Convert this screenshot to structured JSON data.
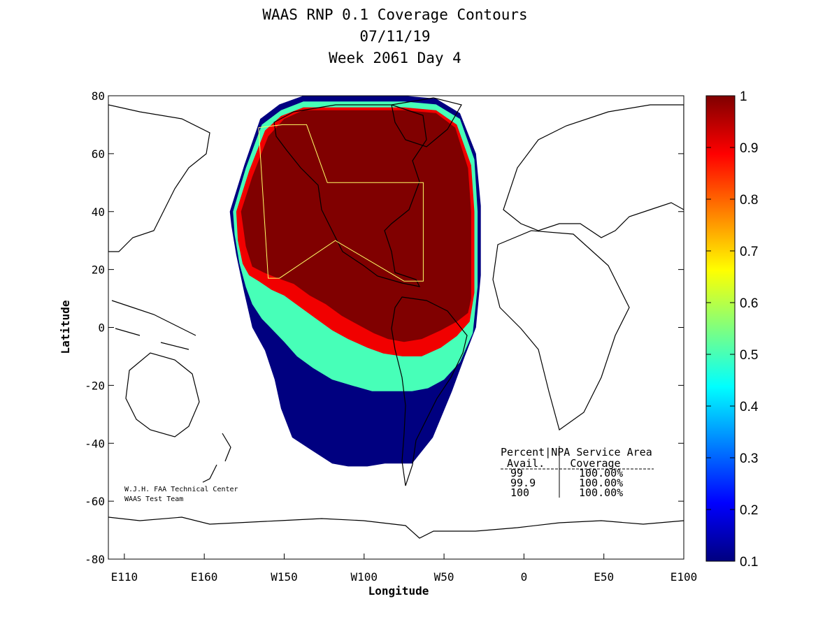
{
  "title_lines": [
    "WAAS RNP 0.1 Coverage Contours",
    "07/11/19",
    "Week 2061 Day 4"
  ],
  "chart_data": {
    "type": "heatmap",
    "title": "WAAS RNP 0.1 Coverage Contours",
    "xlabel": "Longitude",
    "ylabel": "Latitude",
    "xlim": [
      100,
      460
    ],
    "ylim": [
      -80,
      80
    ],
    "x_ticks": [
      {
        "value": 110,
        "label": "E110"
      },
      {
        "value": 160,
        "label": "E160"
      },
      {
        "value": 210,
        "label": "W150"
      },
      {
        "value": 260,
        "label": "W100"
      },
      {
        "value": 310,
        "label": "W50"
      },
      {
        "value": 360,
        "label": "0"
      },
      {
        "value": 410,
        "label": "E50"
      },
      {
        "value": 460,
        "label": "E100"
      }
    ],
    "y_ticks": [
      {
        "value": 80,
        "label": "80"
      },
      {
        "value": 60,
        "label": "60"
      },
      {
        "value": 40,
        "label": "40"
      },
      {
        "value": 20,
        "label": "20"
      },
      {
        "value": 0,
        "label": "0"
      },
      {
        "value": -20,
        "label": "-20"
      },
      {
        "value": -40,
        "label": "-40"
      },
      {
        "value": -60,
        "label": "-60"
      },
      {
        "value": -80,
        "label": "-80"
      }
    ],
    "colorbar": {
      "min": 0.1,
      "max": 1,
      "ticks": [
        {
          "value": 1,
          "label": "1"
        },
        {
          "value": 0.9,
          "label": "0.9"
        },
        {
          "value": 0.8,
          "label": "0.8"
        },
        {
          "value": 0.7,
          "label": "0.7"
        },
        {
          "value": 0.6,
          "label": "0.6"
        },
        {
          "value": 0.5,
          "label": "0.5"
        },
        {
          "value": 0.4,
          "label": "0.4"
        },
        {
          "value": 0.3,
          "label": "0.3"
        },
        {
          "value": 0.2,
          "label": "0.2"
        },
        {
          "value": 0.1,
          "label": "0.1"
        }
      ],
      "colormap": "jet"
    },
    "coverage_contours": [
      {
        "level": 0.1,
        "lons": [
          176,
          185,
          195,
          207,
          222,
          240,
          262,
          285,
          305,
          320,
          330,
          333,
          333,
          330,
          323,
          315,
          303,
          290,
          273,
          262,
          250,
          240,
          226,
          215,
          208,
          204,
          198,
          190,
          185,
          180,
          177,
          176
        ],
        "lats": [
          40,
          56,
          72,
          77,
          80,
          80,
          80,
          80,
          79,
          74,
          60,
          42,
          18,
          0,
          -10,
          -22,
          -38,
          -47,
          -47,
          -48,
          -48,
          -47,
          -42,
          -38,
          -28,
          -18,
          -8,
          0,
          12,
          25,
          35,
          40
        ]
      },
      {
        "level": 0.5,
        "lons": [
          178,
          186,
          196,
          208,
          222,
          240,
          262,
          285,
          305,
          320,
          329,
          331,
          331,
          328,
          320,
          310,
          300,
          290,
          278,
          265,
          252,
          240,
          228,
          218,
          210,
          203,
          196,
          190,
          186,
          182,
          179,
          178
        ],
        "lats": [
          40,
          55,
          70,
          75,
          78,
          78,
          78,
          78,
          77,
          72,
          58,
          40,
          14,
          -2,
          -12,
          -18,
          -21,
          -22,
          -22,
          -22,
          -20,
          -18,
          -14,
          -10,
          -5,
          -1,
          3,
          8,
          14,
          22,
          32,
          40
        ]
      },
      {
        "level": 0.9,
        "lons": [
          180,
          188,
          198,
          208,
          222,
          240,
          262,
          285,
          305,
          318,
          327,
          329,
          329,
          326,
          318,
          308,
          296,
          284,
          272,
          262,
          250,
          240,
          230,
          220,
          210,
          202,
          194,
          188,
          184,
          181,
          180
        ],
        "lats": [
          40,
          54,
          68,
          73,
          76,
          76,
          76,
          76,
          75,
          70,
          56,
          40,
          12,
          2,
          -3,
          -7,
          -10,
          -10,
          -9,
          -7,
          -4,
          -1,
          3,
          7,
          11,
          13,
          16,
          18,
          22,
          30,
          40
        ]
      },
      {
        "level": 1.0,
        "lons": [
          183,
          190,
          200,
          210,
          222,
          240,
          262,
          285,
          305,
          317,
          325,
          327,
          327,
          325,
          318,
          308,
          296,
          285,
          275,
          266,
          256,
          246,
          236,
          226,
          216,
          206,
          197,
          190,
          186,
          183
        ],
        "lats": [
          40,
          52,
          66,
          72,
          75,
          75,
          75,
          75,
          74,
          69,
          55,
          40,
          10,
          5,
          2,
          -1,
          -4,
          -5,
          -4,
          -2,
          1,
          4,
          8,
          11,
          15,
          17,
          19,
          21,
          28,
          40
        ]
      }
    ],
    "service_area_polygon": {
      "lons": [
        194,
        209,
        224,
        237,
        297,
        297,
        285,
        242,
        207,
        200,
        194
      ],
      "lats": [
        69,
        70,
        70,
        50,
        50,
        16,
        16,
        30,
        17,
        17,
        69
      ]
    }
  },
  "credit_lines": [
    "W.J.H. FAA Technical Center",
    "WAAS Test Team"
  ],
  "stats_table": {
    "header_line1": "Percent|NPA Service Area",
    "header_line2": " Avail.    Coverage",
    "rows": [
      {
        "avail": "99",
        "coverage": "100.00%"
      },
      {
        "avail": "99.9",
        "coverage": "100.00%"
      },
      {
        "avail": "100",
        "coverage": "100.00%"
      }
    ]
  }
}
